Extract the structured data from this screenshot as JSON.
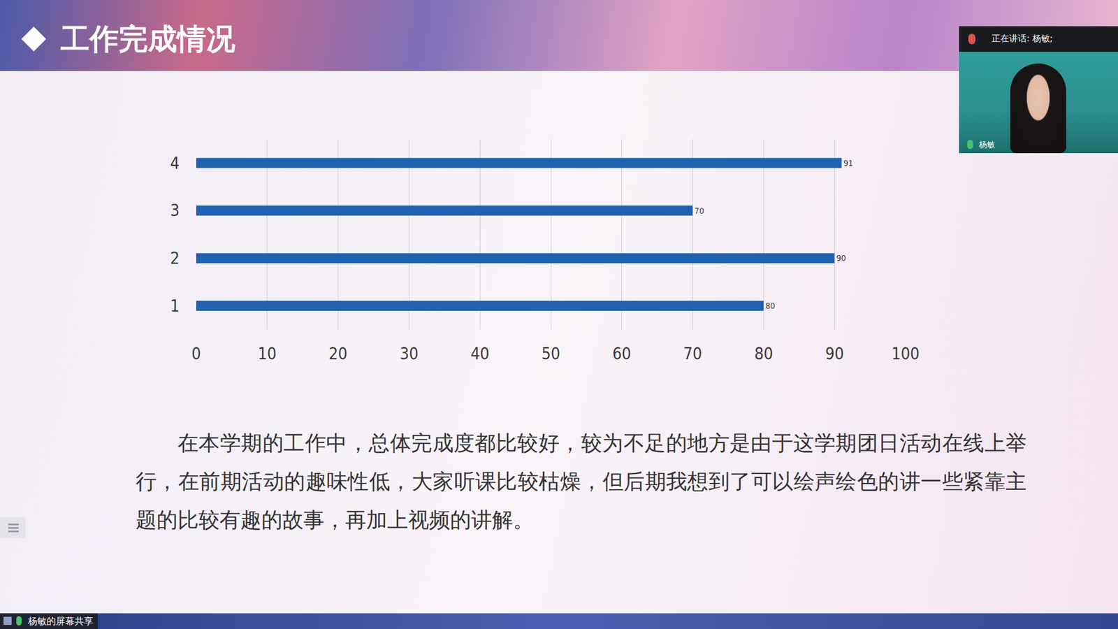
{
  "chart_data": {
    "type": "bar",
    "orientation": "horizontal",
    "title": "工作完成情况",
    "categories": [
      "1",
      "2",
      "3",
      "4"
    ],
    "values": [
      80,
      90,
      70,
      91
    ],
    "color": "#1e62b0",
    "xlim": [
      0,
      100
    ],
    "xticks": [
      0,
      10,
      20,
      30,
      40,
      50,
      60,
      70,
      80,
      90,
      100
    ],
    "grid": true,
    "data_labels": true
  },
  "page": {
    "paragraph": "在本学期的工作中，总体完成度都比较好，较为不足的地方是由于这学期团日活动在线上举行，在前期活动的趣味性低，大家听课比较枯燥，但后期我想到了可以绘声绘色的讲一些紧靠主题的比较有趣的故事，再加上视频的讲解。",
    "speaker_banner": "正在讲话: 杨敏;",
    "speaker_name": "杨敏",
    "share_label": "杨敏的屏幕共享"
  }
}
